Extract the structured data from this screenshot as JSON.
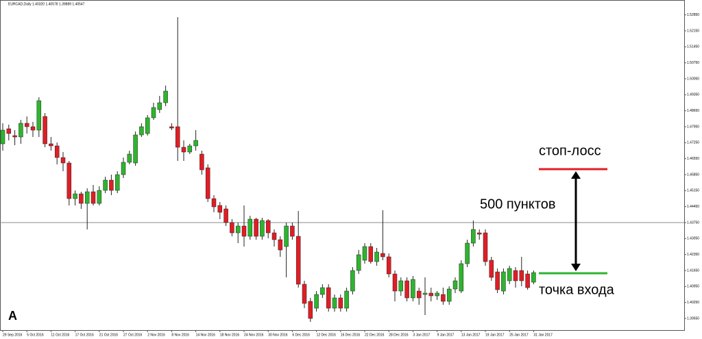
{
  "chart_data": {
    "type": "candlestick",
    "title": "EURCAD,Daily 1.40320 1.40578 1.39889 1.40547",
    "open": [
      1.472,
      1.4786,
      1.4756,
      1.475,
      1.481,
      1.4795,
      1.478,
      1.484,
      1.472,
      1.4711,
      1.466,
      1.4636,
      1.448,
      1.4501,
      1.4459,
      1.451,
      1.4459,
      1.4516,
      1.4561,
      1.4516,
      1.4585,
      1.4639,
      1.4636,
      1.4759,
      1.4765,
      1.4834,
      1.487,
      1.49,
      1.4795,
      1.4795,
      1.4705,
      1.4684,
      1.4711,
      1.4675,
      1.4615,
      1.448,
      1.445,
      1.4435,
      1.4375,
      1.433,
      1.436,
      1.4315,
      1.439,
      1.4315,
      1.4384,
      1.433,
      1.43,
      1.427,
      1.436,
      1.4315,
      1.4105,
      1.403,
      1.4,
      1.406,
      1.409,
      1.4,
      1.4045,
      1.4,
      1.4075,
      1.4165,
      1.421,
      1.427,
      1.4204,
      1.424,
      1.4225,
      1.415,
      1.4075,
      1.412,
      1.4045,
      1.4075,
      1.406,
      1.4066,
      1.4054,
      1.406,
      1.403,
      1.4084,
      1.4075,
      1.4195,
      1.4285,
      1.433,
      1.433,
      1.421,
      1.4159,
      1.4075,
      1.412,
      1.4165,
      1.4165,
      1.415,
      1.4114
    ],
    "high": [
      1.481,
      1.4804,
      1.478,
      1.4825,
      1.484,
      1.4816,
      1.4924,
      1.4855,
      1.475,
      1.4726,
      1.4684,
      1.4645,
      1.4516,
      1.451,
      1.4525,
      1.454,
      1.4534,
      1.4576,
      1.4585,
      1.46,
      1.466,
      1.469,
      1.4774,
      1.481,
      1.4846,
      1.49,
      1.493,
      1.4975,
      1.481,
      1.5275,
      1.4735,
      1.472,
      1.478,
      1.469,
      1.463,
      1.4495,
      1.4465,
      1.445,
      1.439,
      1.4375,
      1.445,
      1.4405,
      1.4396,
      1.4396,
      1.439,
      1.4345,
      1.4315,
      1.4375,
      1.4375,
      1.4426,
      1.412,
      1.4045,
      1.4075,
      1.4105,
      1.4105,
      1.406,
      1.406,
      1.409,
      1.418,
      1.4255,
      1.4285,
      1.4285,
      1.4264,
      1.4429,
      1.424,
      1.4165,
      1.4135,
      1.4135,
      1.4141,
      1.409,
      1.4135,
      1.409,
      1.4075,
      1.409,
      1.4096,
      1.4135,
      1.421,
      1.43,
      1.4384,
      1.4345,
      1.4345,
      1.4225,
      1.4174,
      1.4174,
      1.4186,
      1.418,
      1.4225,
      1.4165,
      1.4165
    ],
    "low": [
      1.469,
      1.4735,
      1.4714,
      1.472,
      1.4765,
      1.475,
      1.475,
      1.4705,
      1.469,
      1.463,
      1.46,
      1.445,
      1.445,
      1.4435,
      1.4345,
      1.445,
      1.445,
      1.4504,
      1.4495,
      1.4504,
      1.457,
      1.463,
      1.4624,
      1.475,
      1.4756,
      1.4825,
      1.4855,
      1.4885,
      1.478,
      1.4645,
      1.4645,
      1.4675,
      1.469,
      1.4585,
      1.4465,
      1.442,
      1.439,
      1.436,
      1.4315,
      1.4285,
      1.427,
      1.43,
      1.43,
      1.43,
      1.4306,
      1.427,
      1.4225,
      1.4135,
      1.43,
      1.409,
      1.4,
      1.394,
      1.3985,
      1.4045,
      1.3985,
      1.3985,
      1.3985,
      1.3985,
      1.406,
      1.415,
      1.4195,
      1.4195,
      1.4186,
      1.421,
      1.4135,
      1.403,
      1.4054,
      1.403,
      1.403,
      1.4015,
      1.397,
      1.403,
      1.4036,
      1.4015,
      1.4015,
      1.4066,
      1.4066,
      1.418,
      1.427,
      1.43,
      1.4186,
      1.412,
      1.4066,
      1.406,
      1.4105,
      1.409,
      1.4096,
      1.4081,
      1.4105
    ],
    "close": [
      1.478,
      1.4765,
      1.475,
      1.481,
      1.4795,
      1.478,
      1.4909,
      1.472,
      1.4711,
      1.466,
      1.4636,
      1.448,
      1.4501,
      1.4459,
      1.451,
      1.4459,
      1.4516,
      1.4561,
      1.4516,
      1.4585,
      1.4639,
      1.4675,
      1.4759,
      1.4795,
      1.4834,
      1.4879,
      1.49,
      1.4951,
      1.4789,
      1.4705,
      1.4684,
      1.4711,
      1.4735,
      1.4606,
      1.448,
      1.4444,
      1.442,
      1.4375,
      1.433,
      1.436,
      1.4315,
      1.439,
      1.4315,
      1.4384,
      1.433,
      1.43,
      1.4255,
      1.436,
      1.4315,
      1.4105,
      1.4021,
      1.3955,
      1.406,
      1.409,
      1.4,
      1.4045,
      1.4,
      1.4075,
      1.4165,
      1.4234,
      1.427,
      1.4204,
      1.4246,
      1.4225,
      1.415,
      1.4075,
      1.412,
      1.4045,
      1.4126,
      1.4045,
      1.4066,
      1.4054,
      1.4066,
      1.403,
      1.4084,
      1.412,
      1.4195,
      1.4285,
      1.4345,
      1.4324,
      1.4204,
      1.4135,
      1.4081,
      1.4159,
      1.4174,
      1.412,
      1.412,
      1.409,
      1.4156
    ],
    "up_color": "#2db52d",
    "down_color": "#e11d25",
    "ylim": [
      1.3904,
      1.535
    ],
    "yticks": [
      {
        "value": 1.3955,
        "label": "1.39550"
      },
      {
        "value": 1.4025,
        "label": "1.40250"
      },
      {
        "value": 1.4095,
        "label": "1.40950"
      },
      {
        "value": 1.4165,
        "label": "1.41650"
      },
      {
        "value": 1.4235,
        "label": "1.42350"
      },
      {
        "value": 1.4305,
        "label": "1.43050"
      },
      {
        "value": 1.4375,
        "label": "1.43750"
      },
      {
        "value": 1.4445,
        "label": "1.44450"
      },
      {
        "value": 1.4515,
        "label": "1.45150"
      },
      {
        "value": 1.4585,
        "label": "1.45850"
      },
      {
        "value": 1.4655,
        "label": "1.46550"
      },
      {
        "value": 1.4725,
        "label": "1.47250"
      },
      {
        "value": 1.4795,
        "label": "1.47950"
      },
      {
        "value": 1.4865,
        "label": "1.48650"
      },
      {
        "value": 1.4935,
        "label": "1.49350"
      },
      {
        "value": 1.5005,
        "label": "1.50050"
      },
      {
        "value": 1.5075,
        "label": "1.50750"
      },
      {
        "value": 1.5145,
        "label": "1.51450"
      },
      {
        "value": 1.5215,
        "label": "1.52150"
      },
      {
        "value": 1.5285,
        "label": "1.52850"
      }
    ],
    "xticks": [
      {
        "value": 0,
        "label": "29 Sep 2016"
      },
      {
        "value": 4,
        "label": "5 Oct 2016"
      },
      {
        "value": 8,
        "label": "11 Oct 2016"
      },
      {
        "value": 12,
        "label": "17 Oct 2016"
      },
      {
        "value": 16,
        "label": "21 Oct 2016"
      },
      {
        "value": 20,
        "label": "27 Oct 2016"
      },
      {
        "value": 24,
        "label": "2 Nov 2016"
      },
      {
        "value": 28,
        "label": "8 Nov 2016"
      },
      {
        "value": 32,
        "label": "14 Nov 2016"
      },
      {
        "value": 36,
        "label": "18 Nov 2016"
      },
      {
        "value": 40,
        "label": "24 Nov 2016"
      },
      {
        "value": 44,
        "label": "30 Nov 2016"
      },
      {
        "value": 48,
        "label": "6 Dec 2016"
      },
      {
        "value": 52,
        "label": "12 Dec 2016"
      },
      {
        "value": 56,
        "label": "16 Dec 2016"
      },
      {
        "value": 60,
        "label": "22 Dec 2016"
      },
      {
        "value": 64,
        "label": "28 Dec 2016"
      },
      {
        "value": 68,
        "label": "3 Jan 2017"
      },
      {
        "value": 72,
        "label": "9 Jan 2017"
      },
      {
        "value": 76,
        "label": "13 Jan 2017"
      },
      {
        "value": 80,
        "label": "19 Jan 2017"
      },
      {
        "value": 84,
        "label": "25 Jan 2017"
      },
      {
        "value": 88,
        "label": "31 Jan 2017"
      }
    ],
    "price_line": {
      "value": 1.4375,
      "color": "#8a8a8a"
    },
    "stop": {
      "text": "стоп-лосс",
      "value": 1.4609,
      "color": "#e11d25"
    },
    "entry": {
      "text": "точка входа",
      "value": 1.4153,
      "color": "#2db52d"
    },
    "range_text": "500 пунктов",
    "corner_text": "A"
  }
}
